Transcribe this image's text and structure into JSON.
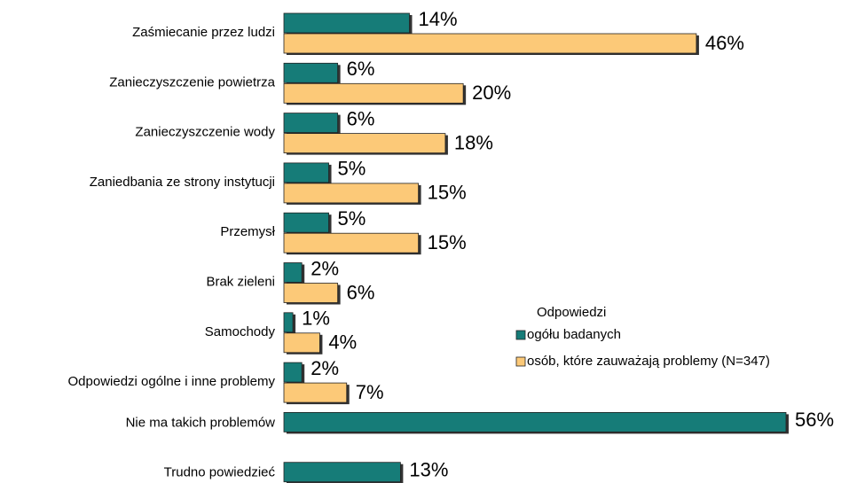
{
  "chart_data": {
    "type": "bar",
    "orientation": "horizontal",
    "categories": [
      "Zaśmiecanie przez ludzi",
      "Zanieczyszczenie powietrza",
      "Zanieczyszczenie wody",
      "Zaniedbania ze strony instytucji",
      "Przemysł",
      "Brak zieleni",
      "Samochody",
      "Odpowiedzi ogólne i inne problemy",
      "Nie ma takich problemów",
      "Trudno powiedzieć"
    ],
    "series": [
      {
        "name": "ogółu badanych",
        "color": "#167c78",
        "values": [
          14,
          6,
          6,
          5,
          5,
          2,
          1,
          2,
          56,
          13
        ],
        "value_labels": [
          "14%",
          "6%",
          "6%",
          "5%",
          "5%",
          "2%",
          "1%",
          "2%",
          "56%",
          "13%"
        ]
      },
      {
        "name": "osób, które zauważają problemy (N=347)",
        "color": "#fcc978",
        "values": [
          46,
          20,
          18,
          15,
          15,
          6,
          4,
          7,
          null,
          null
        ],
        "value_labels": [
          "46%",
          "20%",
          "18%",
          "15%",
          "15%",
          "6%",
          "4%",
          "7%",
          null,
          null
        ]
      }
    ],
    "legend_title": "Odpowiedzi"
  }
}
